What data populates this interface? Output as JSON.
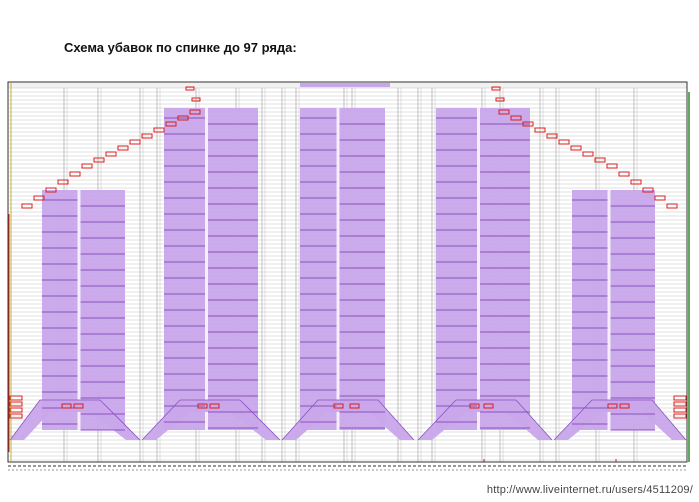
{
  "title": "Схема убавок по спинке до 97 ряда:",
  "watermark": "http://www.liveinternet.ru/users/4511209/",
  "colors": {
    "purple": "#c8a6ea",
    "purple_edge": "#8a52bf",
    "line": "#c4c4c4",
    "marker": "#d81e1e",
    "panel_dark": "#333333",
    "edge_green": "#2e8b2e"
  }
}
